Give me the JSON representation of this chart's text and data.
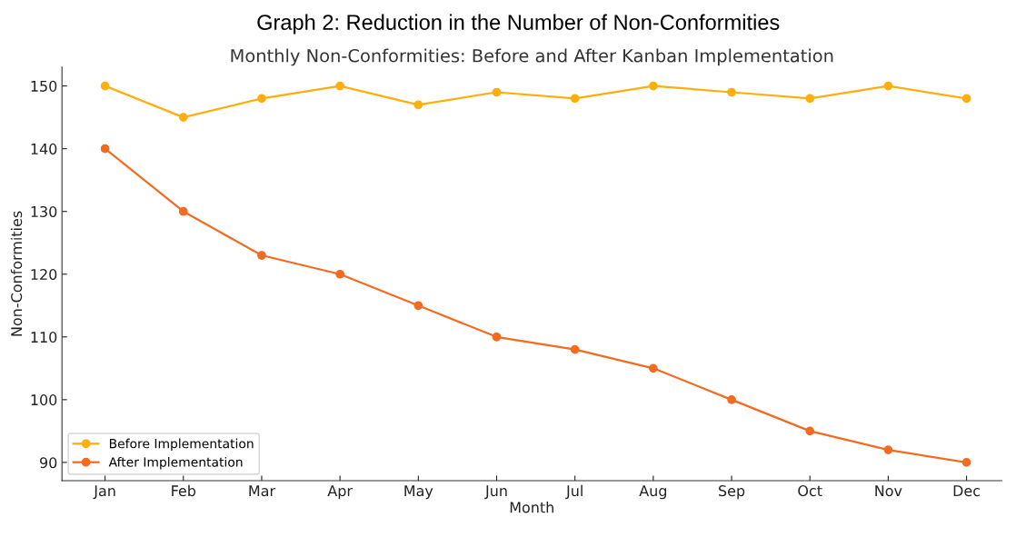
{
  "chart_data": {
    "type": "line",
    "title": "Graph 2: Reduction in the Number of Non-Conformities",
    "subtitle": "Monthly Non-Conformities: Before and After Kanban Implementation",
    "xlabel": "Month",
    "ylabel": "Non-Conformities",
    "categories": [
      "Jan",
      "Feb",
      "Mar",
      "Apr",
      "May",
      "Jun",
      "Jul",
      "Aug",
      "Sep",
      "Oct",
      "Nov",
      "Dec"
    ],
    "series": [
      {
        "name": "Before Implementation",
        "color": "#ffae0d",
        "values": [
          150,
          145,
          148,
          150,
          147,
          149,
          148,
          150,
          149,
          148,
          150,
          148
        ]
      },
      {
        "name": "After Implementation",
        "color": "#f26b21",
        "values": [
          140,
          130,
          123,
          120,
          115,
          110,
          108,
          105,
          100,
          95,
          92,
          90
        ]
      }
    ],
    "ylim": [
      87.1,
      153
    ],
    "yticks": [
      90,
      100,
      110,
      120,
      130,
      140,
      150
    ],
    "grid": false,
    "legend": "bottom left",
    "marker": "circle",
    "line_style": "solid"
  }
}
